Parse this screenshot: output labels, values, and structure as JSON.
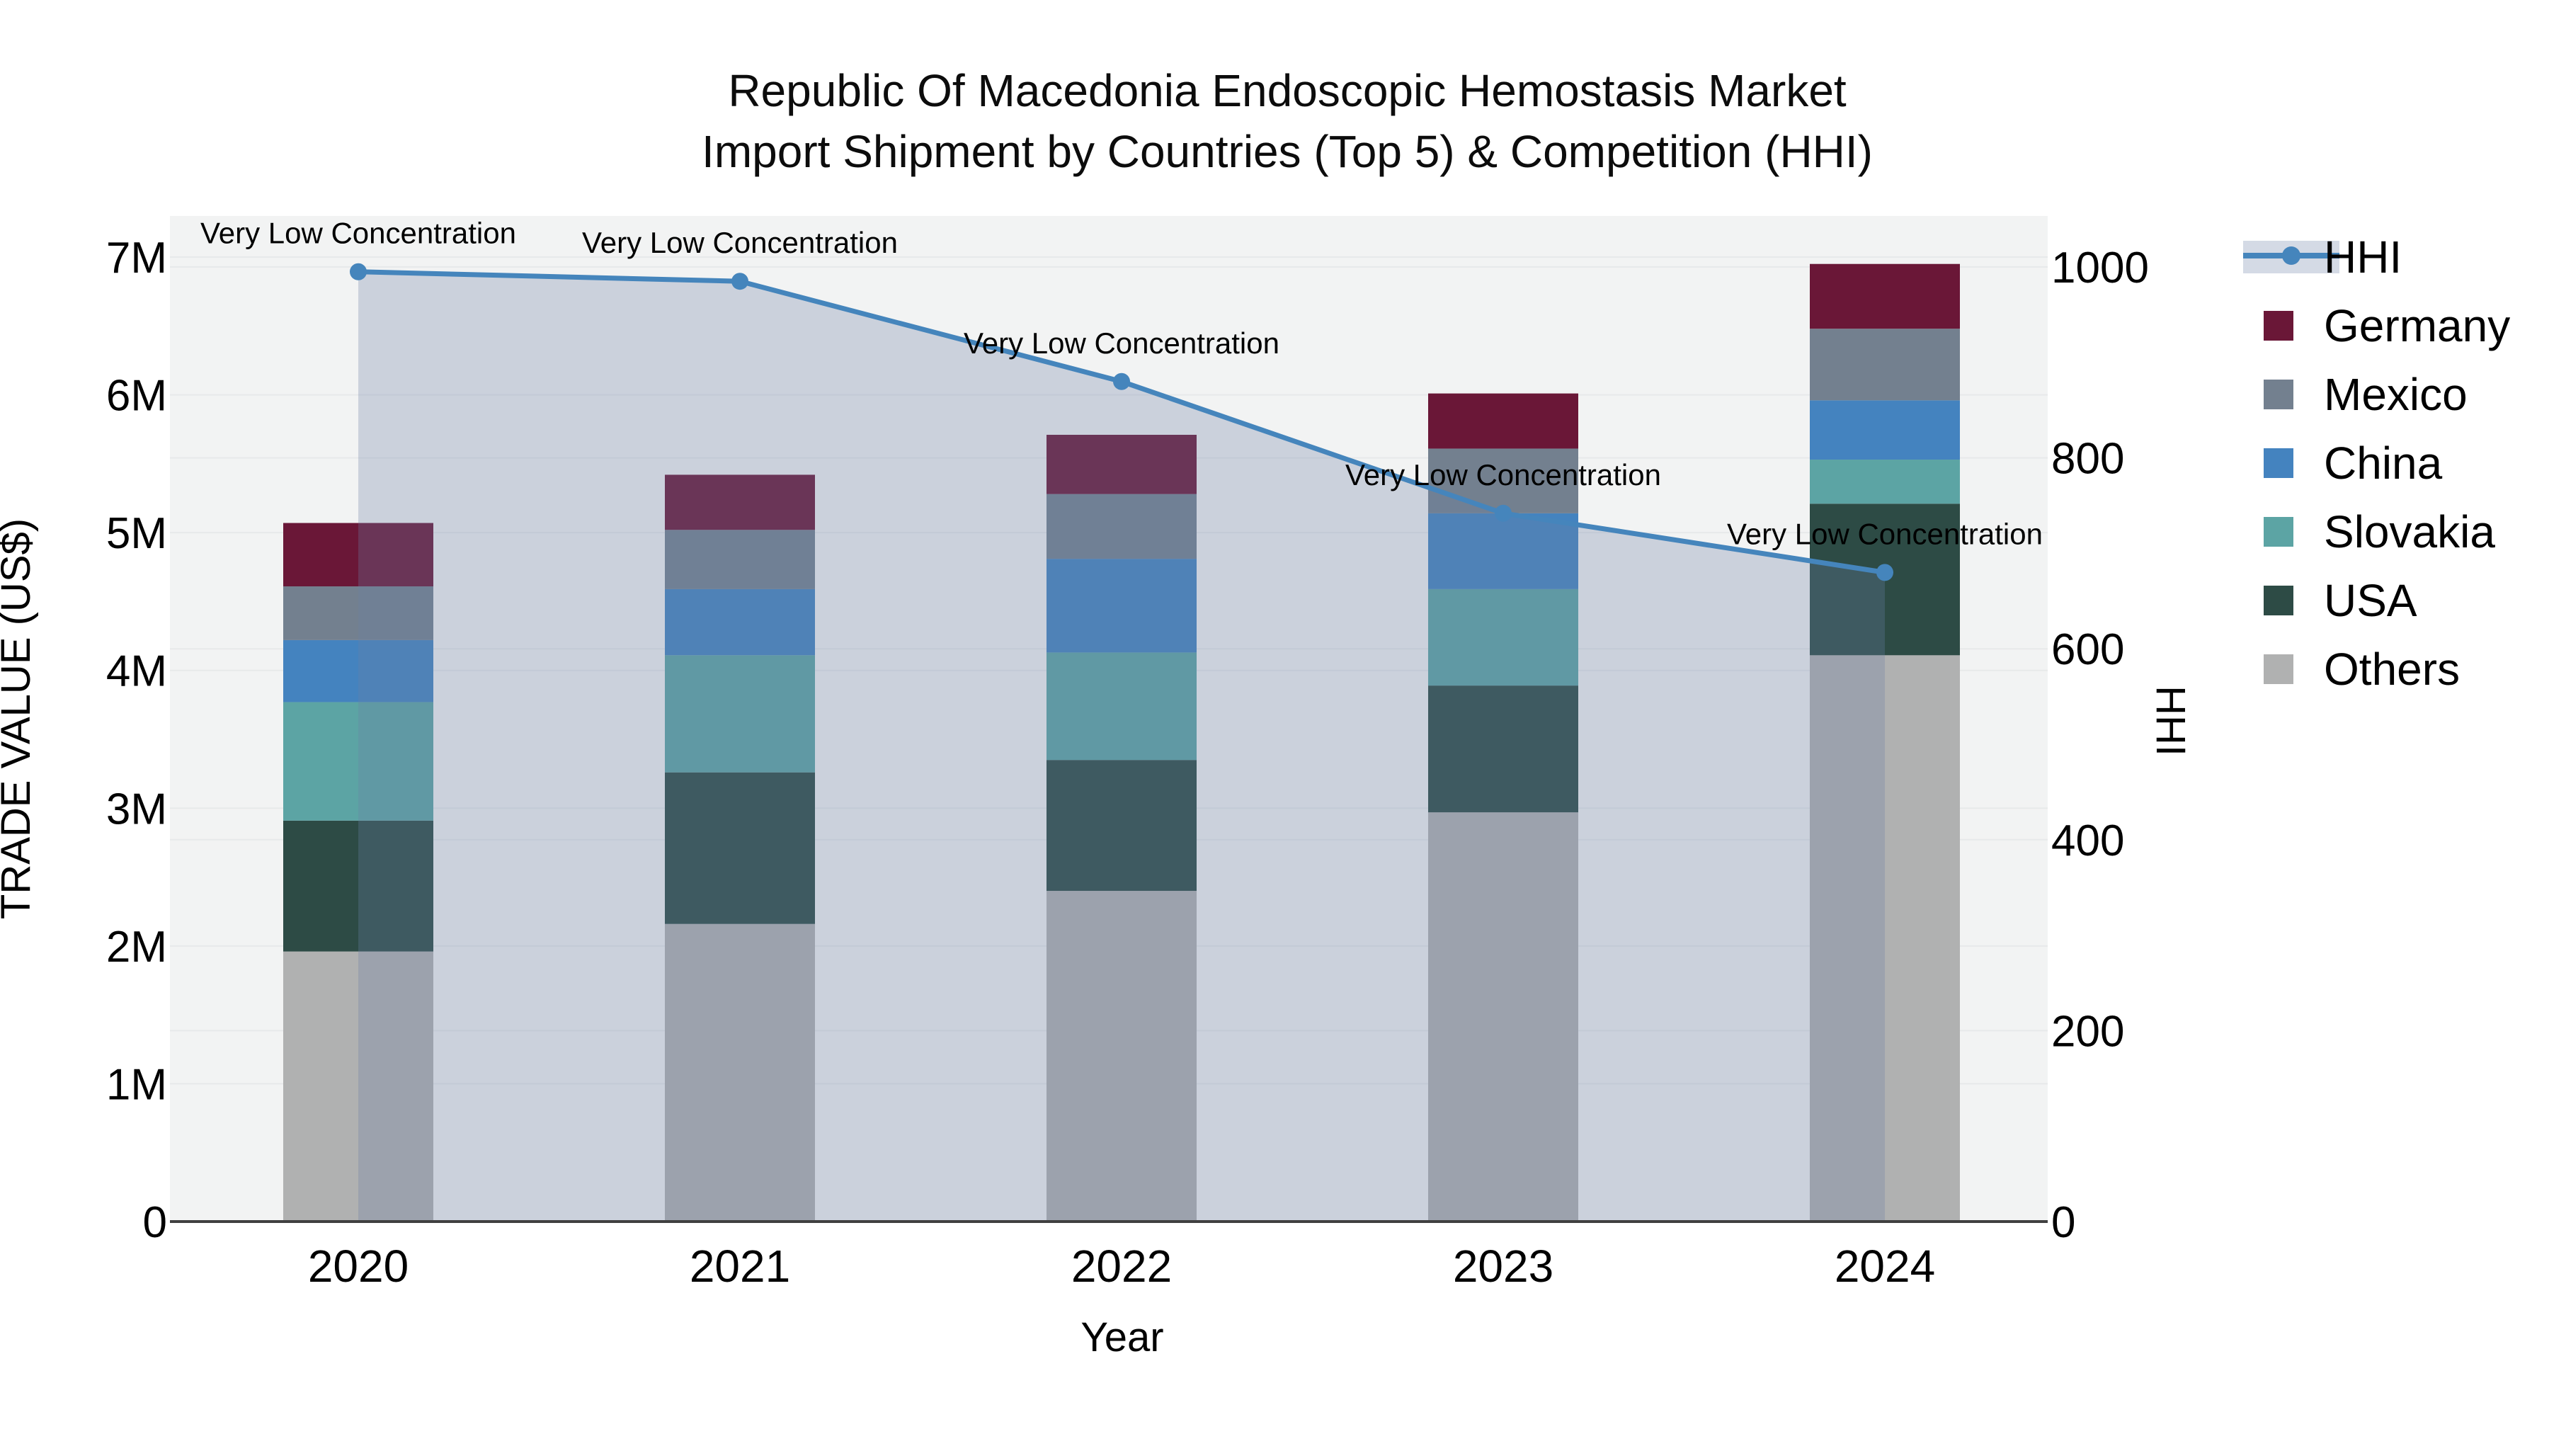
{
  "chart_data": {
    "type": "composite",
    "subtype": [
      "stacked_bar",
      "line"
    ],
    "title_line1": "Republic Of Macedonia Endoscopic Hemostasis Market",
    "title_line2": "Import Shipment by Countries (Top 5) & Competition (HHI)",
    "x_axis": {
      "label": "Year",
      "categories": [
        "2020",
        "2021",
        "2022",
        "2023",
        "2024"
      ]
    },
    "left_axis": {
      "label": "TRADE VALUE (US$)",
      "tick_labels": [
        "0",
        "1M",
        "2M",
        "3M",
        "4M",
        "5M",
        "6M",
        "7M"
      ],
      "range_usd": [
        0,
        7000000
      ],
      "grid": true
    },
    "right_axis": {
      "label": "HHI",
      "tick_labels": [
        "0",
        "200",
        "400",
        "600",
        "800",
        "1000"
      ],
      "range": [
        0,
        1000
      ],
      "grid": true
    },
    "bar_series": [
      {
        "name": "Others",
        "values": [
          1960000,
          2160000,
          2400000,
          2970000,
          4110000
        ]
      },
      {
        "name": "USA",
        "values": [
          950000,
          1100000,
          950000,
          920000,
          1100000
        ]
      },
      {
        "name": "Slovakia",
        "values": [
          860000,
          850000,
          780000,
          700000,
          320000
        ]
      },
      {
        "name": "China",
        "values": [
          450000,
          480000,
          680000,
          550000,
          430000
        ]
      },
      {
        "name": "Mexico",
        "values": [
          390000,
          430000,
          470000,
          470000,
          520000
        ]
      },
      {
        "name": "Germany",
        "values": [
          460000,
          400000,
          430000,
          400000,
          470000
        ]
      }
    ],
    "line_series": {
      "name": "HHI",
      "values": [
        995,
        985,
        880,
        742,
        680
      ],
      "marker": "circle"
    },
    "annotations": [
      {
        "category": "2020",
        "text": "Very Low Concentration"
      },
      {
        "category": "2021",
        "text": "Very Low Concentration"
      },
      {
        "category": "2022",
        "text": "Very Low Concentration"
      },
      {
        "category": "2023",
        "text": "Very Low Concentration"
      },
      {
        "category": "2024",
        "text": "Very Low Concentration"
      }
    ],
    "legend": {
      "position": "right",
      "items": [
        "HHI",
        "Germany",
        "Mexico",
        "China",
        "Slovakia",
        "USA",
        "Others"
      ]
    },
    "palette": {
      "HHI": "#4585bc",
      "Germany": "#6a1737",
      "Mexico": "#73808f",
      "China": "#4483bf",
      "Slovakia": "#5ca4a4",
      "USA": "#2d4b45",
      "Others": "#b0b1b1"
    },
    "area_fill": "rgba(108,128,165,0.29)",
    "plot_bg": "#f2f3f3",
    "gridline_color": "#e7e9ea",
    "axis_line_color": "#404040"
  }
}
